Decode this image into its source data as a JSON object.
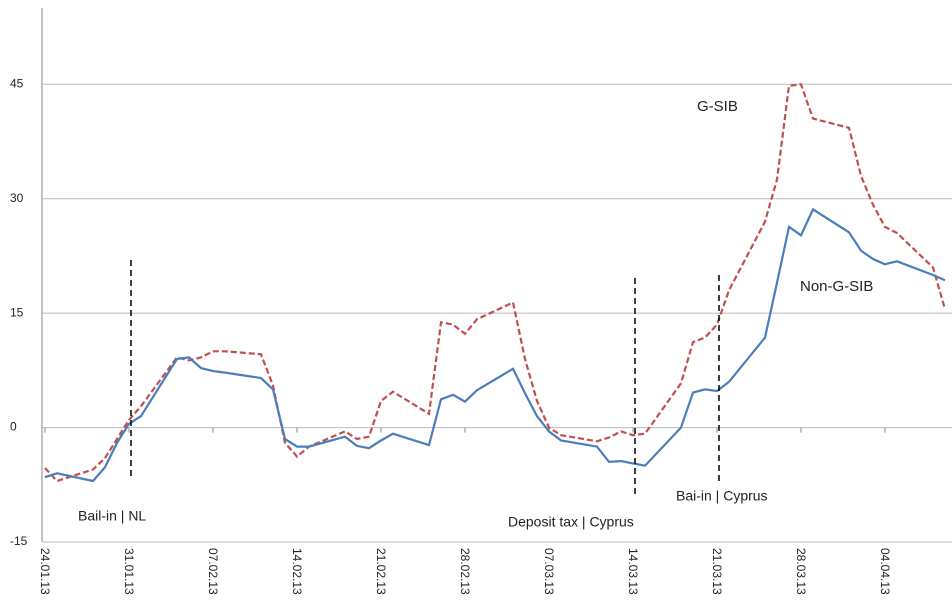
{
  "chart_data": {
    "type": "line",
    "x": [
      "24.01.13",
      "25.01.13",
      "28.01.13",
      "29.01.13",
      "30.01.13",
      "31.01.13",
      "01.02.13",
      "04.02.13",
      "05.02.13",
      "06.02.13",
      "07.02.13",
      "08.02.13",
      "11.02.13",
      "12.02.13",
      "13.02.13",
      "14.02.13",
      "15.02.13",
      "18.02.13",
      "19.02.13",
      "20.02.13",
      "21.02.13",
      "22.02.13",
      "25.02.13",
      "26.02.13",
      "27.02.13",
      "28.02.13",
      "01.03.13",
      "04.03.13",
      "05.03.13",
      "06.03.13",
      "07.03.13",
      "08.03.13",
      "11.03.13",
      "12.03.13",
      "13.03.13",
      "14.03.13",
      "15.03.13",
      "18.03.13",
      "19.03.13",
      "20.03.13",
      "21.03.13",
      "22.03.13",
      "25.03.13",
      "26.03.13",
      "27.03.13",
      "28.03.13",
      "29.03.13",
      "01.04.13",
      "02.04.13",
      "03.04.13",
      "04.04.13",
      "05.04.13",
      "08.04.13",
      "09.04.13"
    ],
    "series": [
      {
        "name": "G-SIB",
        "color": "#c0504d",
        "dash": true,
        "values": [
          -5.3,
          -7,
          -5.5,
          -4,
          -1.5,
          1,
          2.8,
          9.2,
          8.8,
          9.2,
          10,
          10,
          9.6,
          5.5,
          -2,
          -3.8,
          -2.5,
          -0.5,
          -1.5,
          -1.2,
          3.5,
          4.7,
          1.8,
          13.8,
          13.5,
          12.3,
          14.2,
          16.4,
          9,
          3.5,
          0,
          -1,
          -1.8,
          -1.3,
          -0.5,
          -1,
          -0.8,
          5.8,
          11.2,
          11.8,
          13.5,
          18,
          27,
          32.5,
          44.8,
          45,
          40.5,
          39.3,
          33,
          29.2,
          26.3,
          25.5,
          21,
          15.5
        ]
      },
      {
        "name": "Non-G-SIB",
        "color": "#4a7ebb",
        "dash": false,
        "values": [
          -6.5,
          -6,
          -7,
          -5.2,
          -2,
          0.5,
          1.5,
          9,
          9.2,
          7.8,
          7.4,
          7.2,
          6.5,
          5,
          -1.5,
          -2.5,
          -2.5,
          -1.2,
          -2.4,
          -2.7,
          -1.7,
          -0.8,
          -2.3,
          3.7,
          4.3,
          3.4,
          4.9,
          7.7,
          4.5,
          1.5,
          -0.5,
          -1.7,
          -2.5,
          -4.5,
          -4.4,
          -4.7,
          -5,
          0,
          4.6,
          5,
          4.8,
          6,
          11.8,
          19,
          26.3,
          25.2,
          28.6,
          25.6,
          23.2,
          22.1,
          21.4,
          21.8,
          20,
          19.3
        ]
      }
    ],
    "annotations": [
      {
        "text": "Bail-in | NL",
        "x": "31.01.13"
      },
      {
        "text": "Deposit tax | Cyprus",
        "x": "14.03.13"
      },
      {
        "text": "Bai-in | Cyprus",
        "x": "21.03.13"
      }
    ],
    "xlim": [
      "24.01.13",
      "09.04.13"
    ],
    "xticks": [
      "24.01.13",
      "31.01.13",
      "07.02.13",
      "14.02.13",
      "21.02.13",
      "28.02.13",
      "07.03.13",
      "14.03.13",
      "21.03.13",
      "28.03.13",
      "04.04.13"
    ],
    "ylim": [
      -15,
      55
    ],
    "yticks": [
      -15,
      0,
      15,
      30,
      45
    ],
    "grid": true
  }
}
